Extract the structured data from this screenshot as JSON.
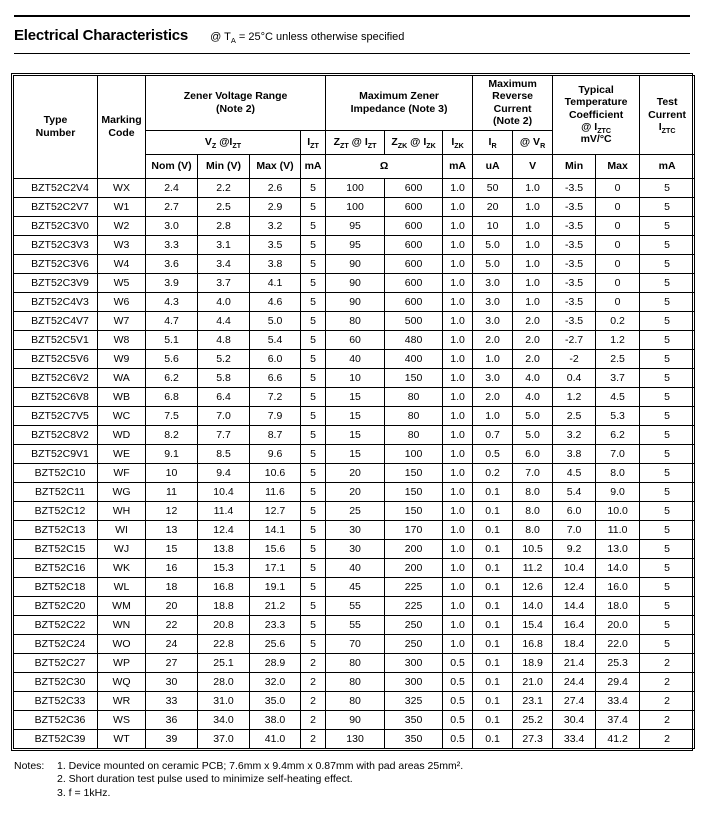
{
  "page": {
    "title": "Electrical Characteristics",
    "title_condition": "@ T~A~ = 25°C unless otherwise specified"
  },
  "table": {
    "groups": {
      "type_number": "Type\nNumber",
      "marking_code": "Marking\nCode",
      "zener_voltage": "Zener Voltage Range\n(Note 2)",
      "zener_impedance": "Maximum Zener\nImpedance (Note 3)",
      "reverse_current": "Maximum\nReverse\nCurrent\n(Note 2)",
      "temp_coefficient": "Typical\nTemperature\nCoefficient\n@ I~ZTC~\nmV/°C",
      "test_current": "Test\nCurrent\nI~ZTC~"
    },
    "subheaders": {
      "vz_izt": "V~Z~ @I~ZT~",
      "izt": "I~ZT~",
      "zzt_izt": "Z~ZT~ @ I~ZT~",
      "zzk_izk": "Z~ZK~ @ I~ZK~",
      "izk": "I~ZK~",
      "ir": "I~R~",
      "vr": "@ V~R~"
    },
    "units": {
      "nom": "Nom (V)",
      "min": "Min (V)",
      "max": "Max (V)",
      "izt_ma": "mA",
      "ohm": "Ω",
      "izk_ma": "mA",
      "ir_ua": "uA",
      "vr_v": "V",
      "tc_min": "Min",
      "tc_max": "Max",
      "iztc_ma": "mA"
    },
    "rows": [
      [
        "BZT52C2V4",
        "WX",
        "2.4",
        "2.2",
        "2.6",
        "5",
        "100",
        "600",
        "1.0",
        "50",
        "1.0",
        "-3.5",
        "0",
        "5"
      ],
      [
        "BZT52C2V7",
        "W1",
        "2.7",
        "2.5",
        "2.9",
        "5",
        "100",
        "600",
        "1.0",
        "20",
        "1.0",
        "-3.5",
        "0",
        "5"
      ],
      [
        "BZT52C3V0",
        "W2",
        "3.0",
        "2.8",
        "3.2",
        "5",
        "95",
        "600",
        "1.0",
        "10",
        "1.0",
        "-3.5",
        "0",
        "5"
      ],
      [
        "BZT52C3V3",
        "W3",
        "3.3",
        "3.1",
        "3.5",
        "5",
        "95",
        "600",
        "1.0",
        "5.0",
        "1.0",
        "-3.5",
        "0",
        "5"
      ],
      [
        "BZT52C3V6",
        "W4",
        "3.6",
        "3.4",
        "3.8",
        "5",
        "90",
        "600",
        "1.0",
        "5.0",
        "1.0",
        "-3.5",
        "0",
        "5"
      ],
      [
        "BZT52C3V9",
        "W5",
        "3.9",
        "3.7",
        "4.1",
        "5",
        "90",
        "600",
        "1.0",
        "3.0",
        "1.0",
        "-3.5",
        "0",
        "5"
      ],
      [
        "BZT52C4V3",
        "W6",
        "4.3",
        "4.0",
        "4.6",
        "5",
        "90",
        "600",
        "1.0",
        "3.0",
        "1.0",
        "-3.5",
        "0",
        "5"
      ],
      [
        "BZT52C4V7",
        "W7",
        "4.7",
        "4.4",
        "5.0",
        "5",
        "80",
        "500",
        "1.0",
        "3.0",
        "2.0",
        "-3.5",
        "0.2",
        "5"
      ],
      [
        "BZT52C5V1",
        "W8",
        "5.1",
        "4.8",
        "5.4",
        "5",
        "60",
        "480",
        "1.0",
        "2.0",
        "2.0",
        "-2.7",
        "1.2",
        "5"
      ],
      [
        "BZT52C5V6",
        "W9",
        "5.6",
        "5.2",
        "6.0",
        "5",
        "40",
        "400",
        "1.0",
        "1.0",
        "2.0",
        "-2",
        "2.5",
        "5"
      ],
      [
        "BZT52C6V2",
        "WA",
        "6.2",
        "5.8",
        "6.6",
        "5",
        "10",
        "150",
        "1.0",
        "3.0",
        "4.0",
        "0.4",
        "3.7",
        "5"
      ],
      [
        "BZT52C6V8",
        "WB",
        "6.8",
        "6.4",
        "7.2",
        "5",
        "15",
        "80",
        "1.0",
        "2.0",
        "4.0",
        "1.2",
        "4.5",
        "5"
      ],
      [
        "BZT52C7V5",
        "WC",
        "7.5",
        "7.0",
        "7.9",
        "5",
        "15",
        "80",
        "1.0",
        "1.0",
        "5.0",
        "2.5",
        "5.3",
        "5"
      ],
      [
        "BZT52C8V2",
        "WD",
        "8.2",
        "7.7",
        "8.7",
        "5",
        "15",
        "80",
        "1.0",
        "0.7",
        "5.0",
        "3.2",
        "6.2",
        "5"
      ],
      [
        "BZT52C9V1",
        "WE",
        "9.1",
        "8.5",
        "9.6",
        "5",
        "15",
        "100",
        "1.0",
        "0.5",
        "6.0",
        "3.8",
        "7.0",
        "5"
      ],
      [
        "BZT52C10",
        "WF",
        "10",
        "9.4",
        "10.6",
        "5",
        "20",
        "150",
        "1.0",
        "0.2",
        "7.0",
        "4.5",
        "8.0",
        "5"
      ],
      [
        "BZT52C11",
        "WG",
        "11",
        "10.4",
        "11.6",
        "5",
        "20",
        "150",
        "1.0",
        "0.1",
        "8.0",
        "5.4",
        "9.0",
        "5"
      ],
      [
        "BZT52C12",
        "WH",
        "12",
        "11.4",
        "12.7",
        "5",
        "25",
        "150",
        "1.0",
        "0.1",
        "8.0",
        "6.0",
        "10.0",
        "5"
      ],
      [
        "BZT52C13",
        "WI",
        "13",
        "12.4",
        "14.1",
        "5",
        "30",
        "170",
        "1.0",
        "0.1",
        "8.0",
        "7.0",
        "11.0",
        "5"
      ],
      [
        "BZT52C15",
        "WJ",
        "15",
        "13.8",
        "15.6",
        "5",
        "30",
        "200",
        "1.0",
        "0.1",
        "10.5",
        "9.2",
        "13.0",
        "5"
      ],
      [
        "BZT52C16",
        "WK",
        "16",
        "15.3",
        "17.1",
        "5",
        "40",
        "200",
        "1.0",
        "0.1",
        "11.2",
        "10.4",
        "14.0",
        "5"
      ],
      [
        "BZT52C18",
        "WL",
        "18",
        "16.8",
        "19.1",
        "5",
        "45",
        "225",
        "1.0",
        "0.1",
        "12.6",
        "12.4",
        "16.0",
        "5"
      ],
      [
        "BZT52C20",
        "WM",
        "20",
        "18.8",
        "21.2",
        "5",
        "55",
        "225",
        "1.0",
        "0.1",
        "14.0",
        "14.4",
        "18.0",
        "5"
      ],
      [
        "BZT52C22",
        "WN",
        "22",
        "20.8",
        "23.3",
        "5",
        "55",
        "250",
        "1.0",
        "0.1",
        "15.4",
        "16.4",
        "20.0",
        "5"
      ],
      [
        "BZT52C24",
        "WO",
        "24",
        "22.8",
        "25.6",
        "5",
        "70",
        "250",
        "1.0",
        "0.1",
        "16.8",
        "18.4",
        "22.0",
        "5"
      ],
      [
        "BZT52C27",
        "WP",
        "27",
        "25.1",
        "28.9",
        "2",
        "80",
        "300",
        "0.5",
        "0.1",
        "18.9",
        "21.4",
        "25.3",
        "2"
      ],
      [
        "BZT52C30",
        "WQ",
        "30",
        "28.0",
        "32.0",
        "2",
        "80",
        "300",
        "0.5",
        "0.1",
        "21.0",
        "24.4",
        "29.4",
        "2"
      ],
      [
        "BZT52C33",
        "WR",
        "33",
        "31.0",
        "35.0",
        "2",
        "80",
        "325",
        "0.5",
        "0.1",
        "23.1",
        "27.4",
        "33.4",
        "2"
      ],
      [
        "BZT52C36",
        "WS",
        "36",
        "34.0",
        "38.0",
        "2",
        "90",
        "350",
        "0.5",
        "0.1",
        "25.2",
        "30.4",
        "37.4",
        "2"
      ],
      [
        "BZT52C39",
        "WT",
        "39",
        "37.0",
        "41.0",
        "2",
        "130",
        "350",
        "0.5",
        "0.1",
        "27.3",
        "33.4",
        "41.2",
        "2"
      ]
    ]
  },
  "notes": {
    "label": "Notes:",
    "items": [
      "1. Device mounted on ceramic PCB; 7.6mm x 9.4mm x 0.87mm with pad areas 25mm².",
      "2. Short duration test pulse used to minimize self-heating effect.",
      "3. f = 1kHz."
    ]
  }
}
